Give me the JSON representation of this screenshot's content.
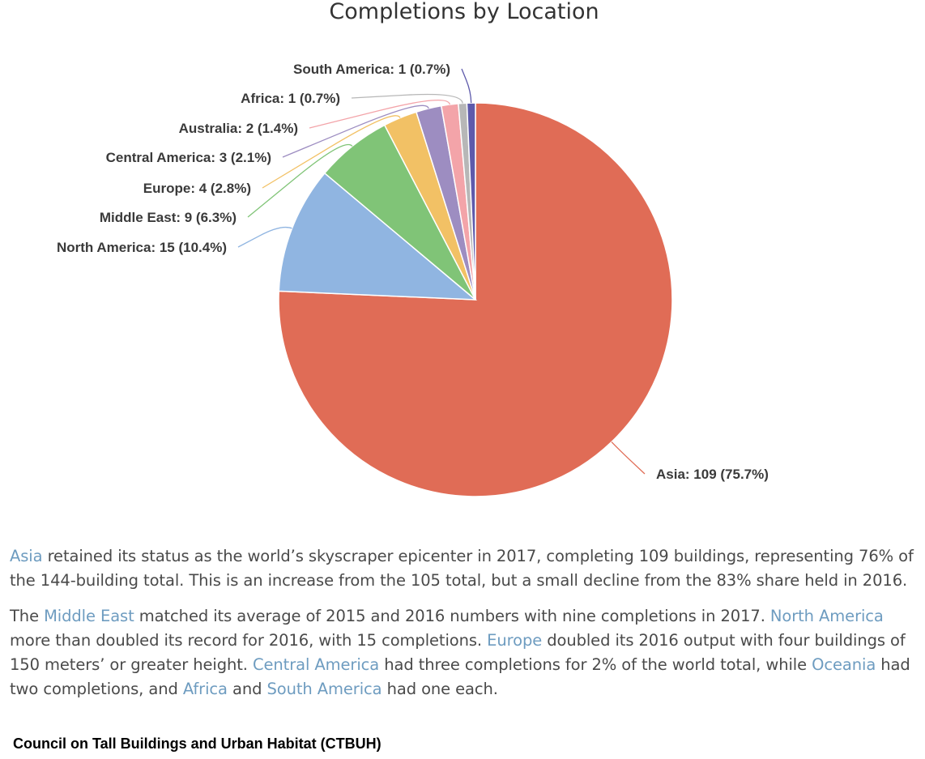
{
  "chart_data": {
    "type": "pie",
    "title": "Completions by Location",
    "start_angle_deg": 0,
    "direction": "counterclockwise",
    "slices": [
      {
        "name": "Asia",
        "value": 109,
        "percent": 75.7,
        "label": "Asia: 109 (75.7%)",
        "color": "#e06c56"
      },
      {
        "name": "North America",
        "value": 15,
        "percent": 10.4,
        "label": "North America: 15 (10.4%)",
        "color": "#90b5e1"
      },
      {
        "name": "Middle East",
        "value": 9,
        "percent": 6.3,
        "label": "Middle East: 9 (6.3%)",
        "color": "#80c477"
      },
      {
        "name": "Europe",
        "value": 4,
        "percent": 2.8,
        "label": "Europe: 4 (2.8%)",
        "color": "#f2c165"
      },
      {
        "name": "Central America",
        "value": 3,
        "percent": 2.1,
        "label": "Central America: 3 (2.1%)",
        "color": "#9d8dc1"
      },
      {
        "name": "Australia",
        "value": 2,
        "percent": 1.4,
        "label": "Australia: 2 (1.4%)",
        "color": "#f3a4a9"
      },
      {
        "name": "Africa",
        "value": 1,
        "percent": 0.7,
        "label": "Africa: 1 (0.7%)",
        "color": "#b7b7b7"
      },
      {
        "name": "South America",
        "value": 1,
        "percent": 0.7,
        "label": "South America: 1 (0.7%)",
        "color": "#5e5aab"
      }
    ]
  },
  "article": {
    "p1": {
      "link_asia": "Asia",
      "text1": " retained its status as the world’s skyscraper epicenter in 2017, completing 109 buildings, representing 76% of the 144-building total. This is an increase from the 105 total, but a small decline from the 83% share held in 2016."
    },
    "p2": {
      "text0": "The ",
      "link_middle_east": "Middle East",
      "text1": " matched its average of 2015 and 2016 numbers with nine completions in 2017. ",
      "link_north_america": "North America",
      "text2": " more than doubled its record for 2016, with 15 completions. ",
      "link_europe": "Europe",
      "text3": " doubled its 2016 output with four buildings of 150 meters’ or greater height. ",
      "link_central_america": "Central America",
      "text4": " had three completions for 2% of the world total, while ",
      "link_oceania": "Oceania",
      "text5": " had two completions, and ",
      "link_africa": "Africa",
      "text6": " and ",
      "link_south_america": "South America",
      "text7": " had one each."
    }
  },
  "source": "Council on Tall Buildings and Urban Habitat (CTBUH)"
}
